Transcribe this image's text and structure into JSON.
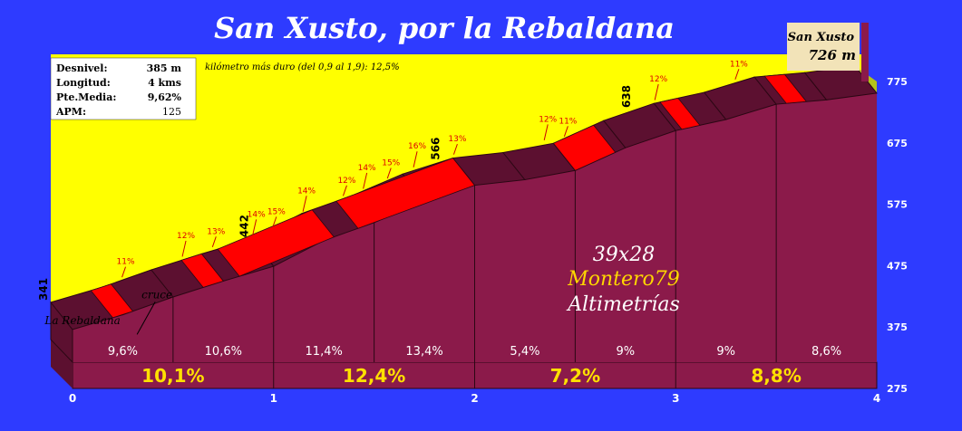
{
  "chart_data": {
    "type": "area",
    "title": "San Xusto, por la Rebaldana",
    "summit": {
      "name": "San Xusto",
      "altitude": "726 m"
    },
    "stats": [
      {
        "label": "Desnivel:",
        "value": "385 m"
      },
      {
        "label": "Longitud:",
        "value": "4 kms"
      },
      {
        "label": "Pte.Media:",
        "value": "9,62%"
      },
      {
        "label": "APM:",
        "value": "125"
      }
    ],
    "note": "kilómetro más duro (del 0,9 al 1,9):  12,5%",
    "watermark": [
      "39x28",
      "Montero79",
      "Altimetrías"
    ],
    "x_ticks": [
      "0",
      "1",
      "2",
      "3",
      "4"
    ],
    "y_ticks": [
      "275",
      "375",
      "475",
      "575",
      "675",
      "775"
    ],
    "xlim": [
      0,
      4
    ],
    "ylim": [
      275,
      775
    ],
    "profile": [
      [
        0,
        341
      ],
      [
        0.25,
        365
      ],
      [
        0.5,
        394
      ],
      [
        0.75,
        420
      ],
      [
        1,
        444
      ],
      [
        1.25,
        486
      ],
      [
        1.5,
        515
      ],
      [
        1.75,
        550
      ],
      [
        2,
        576
      ],
      [
        2.25,
        585
      ],
      [
        2.5,
        600
      ],
      [
        2.75,
        637
      ],
      [
        3,
        665
      ],
      [
        3.25,
        683
      ],
      [
        3.5,
        708
      ],
      [
        3.75,
        715
      ],
      [
        4,
        726
      ]
    ],
    "hot_segments": [
      [
        0.2,
        0.3
      ],
      [
        0.65,
        0.75
      ],
      [
        0.83,
        1.3
      ],
      [
        1.42,
        2.0
      ],
      [
        2.5,
        2.7
      ],
      [
        3.03,
        3.12
      ],
      [
        3.55,
        3.65
      ]
    ],
    "km_labels": [
      "10,1%",
      "12,4%",
      "7,2%",
      "8,8%"
    ],
    "segment_labels": [
      "9,6%",
      "10,6%",
      "11,4%",
      "13,4%",
      "5,4%",
      "9%",
      "9%",
      "8,6%"
    ],
    "slope_labels": [
      {
        "text": "11%",
        "x": 0.3
      },
      {
        "text": "12%",
        "x": 0.6
      },
      {
        "text": "13%",
        "x": 0.75
      },
      {
        "text": "14%",
        "x": 0.95
      },
      {
        "text": "15%",
        "x": 1.05
      },
      {
        "text": "14%",
        "x": 1.2
      },
      {
        "text": "12%",
        "x": 1.4
      },
      {
        "text": "14%",
        "x": 1.5
      },
      {
        "text": "15%",
        "x": 1.62
      },
      {
        "text": "16%",
        "x": 1.75
      },
      {
        "text": "13%",
        "x": 1.95
      },
      {
        "text": "12%",
        "x": 2.4
      },
      {
        "text": "11%",
        "x": 2.5
      },
      {
        "text": "12%",
        "x": 2.95
      },
      {
        "text": "11%",
        "x": 3.35
      }
    ],
    "altitude_marks": [
      {
        "text": "341",
        "x": 0,
        "y": 341
      },
      {
        "text": "442",
        "x": 1,
        "y": 444
      },
      {
        "text": "566",
        "x": 1.95,
        "y": 570
      },
      {
        "text": "638",
        "x": 2.9,
        "y": 655
      }
    ],
    "place_labels": [
      {
        "text": "La Rebaldana",
        "x": 0.05,
        "y": 380
      },
      {
        "text": "cruce",
        "x": 0.42,
        "y": 422
      }
    ],
    "colors": {
      "background": "#2e3bff",
      "sky": "#ffff00",
      "face": "#8b1a4a",
      "top": "#5c1030",
      "hot": "#ff0000"
    }
  }
}
